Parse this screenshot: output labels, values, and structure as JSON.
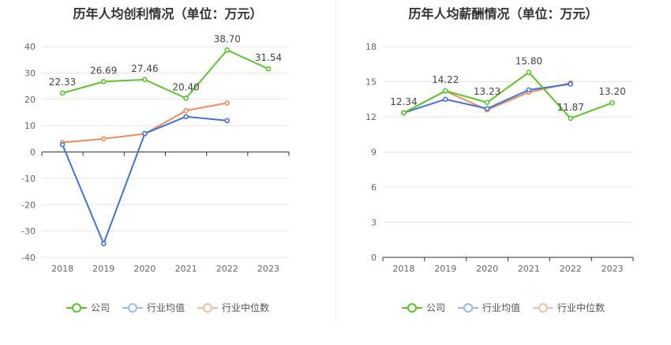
{
  "chart_data": [
    {
      "id": "left",
      "type": "line",
      "title": "历年人均创利情况（单位：万元）",
      "categories": [
        "2018",
        "2019",
        "2020",
        "2021",
        "2022",
        "2023"
      ],
      "ylim": [
        -40,
        40
      ],
      "yticks": [
        -40,
        -30,
        -20,
        -10,
        0,
        10,
        20,
        30,
        40
      ],
      "series": [
        {
          "name": "公司",
          "color": "#5ac52a",
          "values": [
            22.33,
            26.69,
            27.46,
            20.4,
            38.7,
            31.54
          ],
          "labels": [
            "22.33",
            "26.69",
            "27.46",
            "20.40",
            "38.70",
            "31.54"
          ]
        },
        {
          "name": "行业均值",
          "color": "#3f74d9",
          "values": [
            2.8,
            -34.8,
            7.0,
            13.4,
            11.9,
            null
          ]
        },
        {
          "name": "行业中位数",
          "color": "#ee8b59",
          "values": [
            3.6,
            5.0,
            6.9,
            15.7,
            18.6,
            null
          ]
        }
      ]
    },
    {
      "id": "right",
      "type": "line",
      "title": "历年人均薪酬情况（单位：万元）",
      "categories": [
        "2018",
        "2019",
        "2020",
        "2021",
        "2022",
        "2023"
      ],
      "ylim": [
        0,
        18
      ],
      "yticks": [
        0,
        3,
        6,
        9,
        12,
        15,
        18
      ],
      "series": [
        {
          "name": "公司",
          "color": "#5ac52a",
          "values": [
            12.34,
            14.22,
            13.23,
            15.8,
            11.87,
            13.2
          ],
          "labels": [
            "12.34",
            "14.22",
            "13.23",
            "15.80",
            "11.87",
            "13.20"
          ]
        },
        {
          "name": "行业均值",
          "color": "#3f74d9",
          "values": [
            12.34,
            13.5,
            12.7,
            14.3,
            14.8,
            null
          ]
        },
        {
          "name": "行业中位数",
          "color": "#ee8b59",
          "values": [
            12.34,
            14.2,
            12.6,
            14.1,
            14.9,
            null
          ]
        }
      ]
    }
  ],
  "legend": [
    "公司",
    "行业均值",
    "行业中位数"
  ],
  "colors": {
    "company": "#5ac52a",
    "avg": "#3f74d9",
    "median": "#ee8b59"
  }
}
